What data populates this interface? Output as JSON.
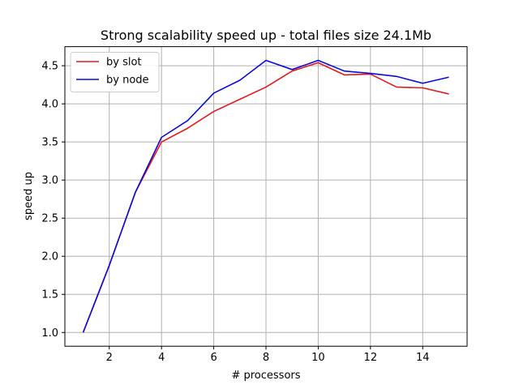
{
  "chart_data": {
    "type": "line",
    "title": "Strong scalability speed up - total files size 24.1Mb",
    "xlabel": "# processors",
    "ylabel": "speed up",
    "xlim": [
      0.3,
      15.7
    ],
    "ylim": [
      0.82,
      4.75
    ],
    "xticks": [
      2,
      4,
      6,
      8,
      10,
      12,
      14
    ],
    "xtick_labels": [
      "2",
      "4",
      "6",
      "8",
      "10",
      "12",
      "14"
    ],
    "yticks": [
      1.0,
      1.5,
      2.0,
      2.5,
      3.0,
      3.5,
      4.0,
      4.5
    ],
    "ytick_labels": [
      "1.0",
      "1.5",
      "2.0",
      "2.5",
      "3.0",
      "3.5",
      "4.0",
      "4.5"
    ],
    "grid": true,
    "legend_position": "top-left",
    "x": [
      1,
      2,
      3,
      4,
      5,
      6,
      7,
      8,
      9,
      10,
      11,
      12,
      13,
      14,
      15
    ],
    "series": [
      {
        "name": "by slot",
        "color": "#e31a1c",
        "values": [
          1.0,
          1.88,
          2.84,
          3.5,
          3.68,
          3.9,
          4.06,
          4.22,
          4.43,
          4.54,
          4.38,
          4.39,
          4.22,
          4.21,
          4.13
        ]
      },
      {
        "name": "by node",
        "color": "#0a0adc",
        "values": [
          1.0,
          1.88,
          2.84,
          3.56,
          3.78,
          4.14,
          4.31,
          4.57,
          4.45,
          4.57,
          4.43,
          4.4,
          4.36,
          4.27,
          4.35
        ]
      }
    ]
  }
}
